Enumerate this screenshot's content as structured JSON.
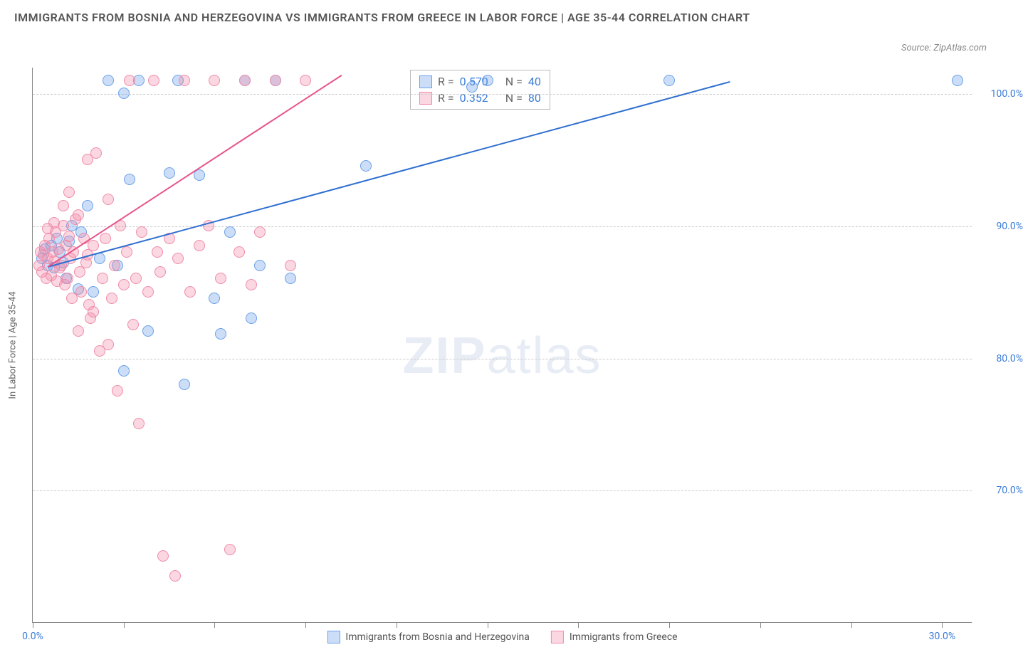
{
  "title": "IMMIGRANTS FROM BOSNIA AND HERZEGOVINA VS IMMIGRANTS FROM GREECE IN LABOR FORCE | AGE 35-44 CORRELATION CHART",
  "source_label": "Source: ZipAtlas.com",
  "watermark": {
    "bold": "ZIP",
    "light": "atlas"
  },
  "y_axis": {
    "label": "In Labor Force | Age 35-44",
    "min": 60.0,
    "max": 102.0,
    "ticks": [
      70.0,
      80.0,
      90.0,
      100.0
    ],
    "tick_format_suffix": "%",
    "label_color": "#3b7dd8",
    "label_fontsize": 14
  },
  "x_axis": {
    "min": 0.0,
    "max": 31.0,
    "ticks": [
      0.0,
      3.0,
      6.0,
      9.0,
      12.0,
      15.0,
      18.0,
      21.0,
      24.0,
      27.0,
      30.0
    ],
    "labeled_ticks": [
      {
        "value": 0.0,
        "label": "0.0%"
      },
      {
        "value": 30.0,
        "label": "30.0%"
      }
    ],
    "label_color": "#3b7dd8",
    "label_fontsize": 14
  },
  "series": [
    {
      "name": "Immigrants from Bosnia and Herzegovina",
      "fill_color": "rgba(108,160,232,0.35)",
      "stroke_color": "#6ca0e8",
      "line_color": "#2f6fd0",
      "r_value": "0.570",
      "n_value": "40",
      "regression": {
        "x1": 0.5,
        "y1": 87.0,
        "x2": 23.0,
        "y2": 101.0
      },
      "points": [
        {
          "x": 0.3,
          "y": 87.5
        },
        {
          "x": 0.4,
          "y": 88.2
        },
        {
          "x": 0.5,
          "y": 87.0
        },
        {
          "x": 0.6,
          "y": 88.5
        },
        {
          "x": 0.7,
          "y": 86.8
        },
        {
          "x": 0.8,
          "y": 89.0
        },
        {
          "x": 0.9,
          "y": 88.0
        },
        {
          "x": 1.0,
          "y": 87.2
        },
        {
          "x": 1.1,
          "y": 86.0
        },
        {
          "x": 1.2,
          "y": 88.8
        },
        {
          "x": 1.3,
          "y": 90.0
        },
        {
          "x": 1.5,
          "y": 85.2
        },
        {
          "x": 1.6,
          "y": 89.5
        },
        {
          "x": 1.8,
          "y": 91.5
        },
        {
          "x": 2.0,
          "y": 85.0
        },
        {
          "x": 2.2,
          "y": 87.5
        },
        {
          "x": 2.5,
          "y": 101.0
        },
        {
          "x": 2.8,
          "y": 87.0
        },
        {
          "x": 3.0,
          "y": 79.0
        },
        {
          "x": 3.2,
          "y": 93.5
        },
        {
          "x": 3.5,
          "y": 101.0
        },
        {
          "x": 3.8,
          "y": 82.0
        },
        {
          "x": 4.5,
          "y": 94.0
        },
        {
          "x": 4.8,
          "y": 101.0
        },
        {
          "x": 5.0,
          "y": 78.0
        },
        {
          "x": 5.5,
          "y": 93.8
        },
        {
          "x": 6.0,
          "y": 84.5
        },
        {
          "x": 6.2,
          "y": 81.8
        },
        {
          "x": 6.5,
          "y": 89.5
        },
        {
          "x": 7.0,
          "y": 101.0
        },
        {
          "x": 7.2,
          "y": 83.0
        },
        {
          "x": 7.5,
          "y": 87.0
        },
        {
          "x": 8.0,
          "y": 101.0
        },
        {
          "x": 8.5,
          "y": 86.0
        },
        {
          "x": 11.0,
          "y": 94.5
        },
        {
          "x": 14.5,
          "y": 100.5
        },
        {
          "x": 15.0,
          "y": 101.0
        },
        {
          "x": 21.0,
          "y": 101.0
        },
        {
          "x": 30.5,
          "y": 101.0
        },
        {
          "x": 3.0,
          "y": 100.0
        }
      ]
    },
    {
      "name": "Immigrants from Greece",
      "fill_color": "rgba(240,140,170,0.35)",
      "stroke_color": "#f08caa",
      "line_color": "#e8558c",
      "r_value": "0.352",
      "n_value": "80",
      "regression": {
        "x1": 0.5,
        "y1": 87.0,
        "x2": 10.2,
        "y2": 101.5
      },
      "points": [
        {
          "x": 0.2,
          "y": 87.0
        },
        {
          "x": 0.25,
          "y": 88.0
        },
        {
          "x": 0.3,
          "y": 86.5
        },
        {
          "x": 0.35,
          "y": 87.8
        },
        {
          "x": 0.4,
          "y": 88.5
        },
        {
          "x": 0.45,
          "y": 86.0
        },
        {
          "x": 0.5,
          "y": 87.5
        },
        {
          "x": 0.55,
          "y": 89.0
        },
        {
          "x": 0.6,
          "y": 86.2
        },
        {
          "x": 0.65,
          "y": 88.0
        },
        {
          "x": 0.7,
          "y": 87.3
        },
        {
          "x": 0.75,
          "y": 89.5
        },
        {
          "x": 0.8,
          "y": 85.8
        },
        {
          "x": 0.85,
          "y": 88.2
        },
        {
          "x": 0.9,
          "y": 86.8
        },
        {
          "x": 0.95,
          "y": 87.0
        },
        {
          "x": 1.0,
          "y": 90.0
        },
        {
          "x": 1.05,
          "y": 85.5
        },
        {
          "x": 1.1,
          "y": 88.5
        },
        {
          "x": 1.15,
          "y": 86.0
        },
        {
          "x": 1.2,
          "y": 89.2
        },
        {
          "x": 1.25,
          "y": 87.5
        },
        {
          "x": 1.3,
          "y": 84.5
        },
        {
          "x": 1.35,
          "y": 88.0
        },
        {
          "x": 1.4,
          "y": 90.5
        },
        {
          "x": 1.5,
          "y": 82.0
        },
        {
          "x": 1.55,
          "y": 86.5
        },
        {
          "x": 1.6,
          "y": 85.0
        },
        {
          "x": 1.7,
          "y": 89.0
        },
        {
          "x": 1.75,
          "y": 87.2
        },
        {
          "x": 1.8,
          "y": 95.0
        },
        {
          "x": 1.85,
          "y": 84.0
        },
        {
          "x": 1.9,
          "y": 83.0
        },
        {
          "x": 2.0,
          "y": 88.5
        },
        {
          "x": 2.1,
          "y": 95.5
        },
        {
          "x": 2.2,
          "y": 80.5
        },
        {
          "x": 2.3,
          "y": 86.0
        },
        {
          "x": 2.4,
          "y": 89.0
        },
        {
          "x": 2.5,
          "y": 92.0
        },
        {
          "x": 2.6,
          "y": 84.5
        },
        {
          "x": 2.7,
          "y": 87.0
        },
        {
          "x": 2.8,
          "y": 77.5
        },
        {
          "x": 2.9,
          "y": 90.0
        },
        {
          "x": 3.0,
          "y": 85.5
        },
        {
          "x": 3.1,
          "y": 88.0
        },
        {
          "x": 3.2,
          "y": 101.0
        },
        {
          "x": 3.3,
          "y": 82.5
        },
        {
          "x": 3.4,
          "y": 86.0
        },
        {
          "x": 3.5,
          "y": 75.0
        },
        {
          "x": 3.6,
          "y": 89.5
        },
        {
          "x": 3.8,
          "y": 85.0
        },
        {
          "x": 4.0,
          "y": 101.0
        },
        {
          "x": 4.1,
          "y": 88.0
        },
        {
          "x": 4.2,
          "y": 86.5
        },
        {
          "x": 4.3,
          "y": 65.0
        },
        {
          "x": 4.5,
          "y": 89.0
        },
        {
          "x": 4.7,
          "y": 63.5
        },
        {
          "x": 4.8,
          "y": 87.5
        },
        {
          "x": 5.0,
          "y": 101.0
        },
        {
          "x": 5.2,
          "y": 85.0
        },
        {
          "x": 5.5,
          "y": 88.5
        },
        {
          "x": 5.8,
          "y": 90.0
        },
        {
          "x": 6.0,
          "y": 101.0
        },
        {
          "x": 6.2,
          "y": 86.0
        },
        {
          "x": 6.5,
          "y": 65.5
        },
        {
          "x": 6.8,
          "y": 88.0
        },
        {
          "x": 7.0,
          "y": 101.0
        },
        {
          "x": 7.2,
          "y": 85.5
        },
        {
          "x": 7.5,
          "y": 89.5
        },
        {
          "x": 8.0,
          "y": 101.0
        },
        {
          "x": 8.5,
          "y": 87.0
        },
        {
          "x": 9.0,
          "y": 101.0
        },
        {
          "x": 1.0,
          "y": 91.5
        },
        {
          "x": 1.2,
          "y": 92.5
        },
        {
          "x": 0.5,
          "y": 89.8
        },
        {
          "x": 0.7,
          "y": 90.2
        },
        {
          "x": 2.0,
          "y": 83.5
        },
        {
          "x": 2.5,
          "y": 81.0
        },
        {
          "x": 1.5,
          "y": 90.8
        },
        {
          "x": 1.8,
          "y": 87.8
        }
      ]
    }
  ],
  "stats_box": {
    "r_prefix": "R = ",
    "n_prefix": "N = "
  },
  "legend": {
    "series1": "Immigrants from Bosnia and Herzegovina",
    "series2": "Immigrants from Greece"
  },
  "styling": {
    "background_color": "#ffffff",
    "axis_color": "#888888",
    "grid_color": "#cccccc",
    "title_color": "#555555",
    "title_fontsize": 16,
    "marker_radius": 8,
    "marker_stroke_width": 1,
    "regression_line_width": 2
  }
}
